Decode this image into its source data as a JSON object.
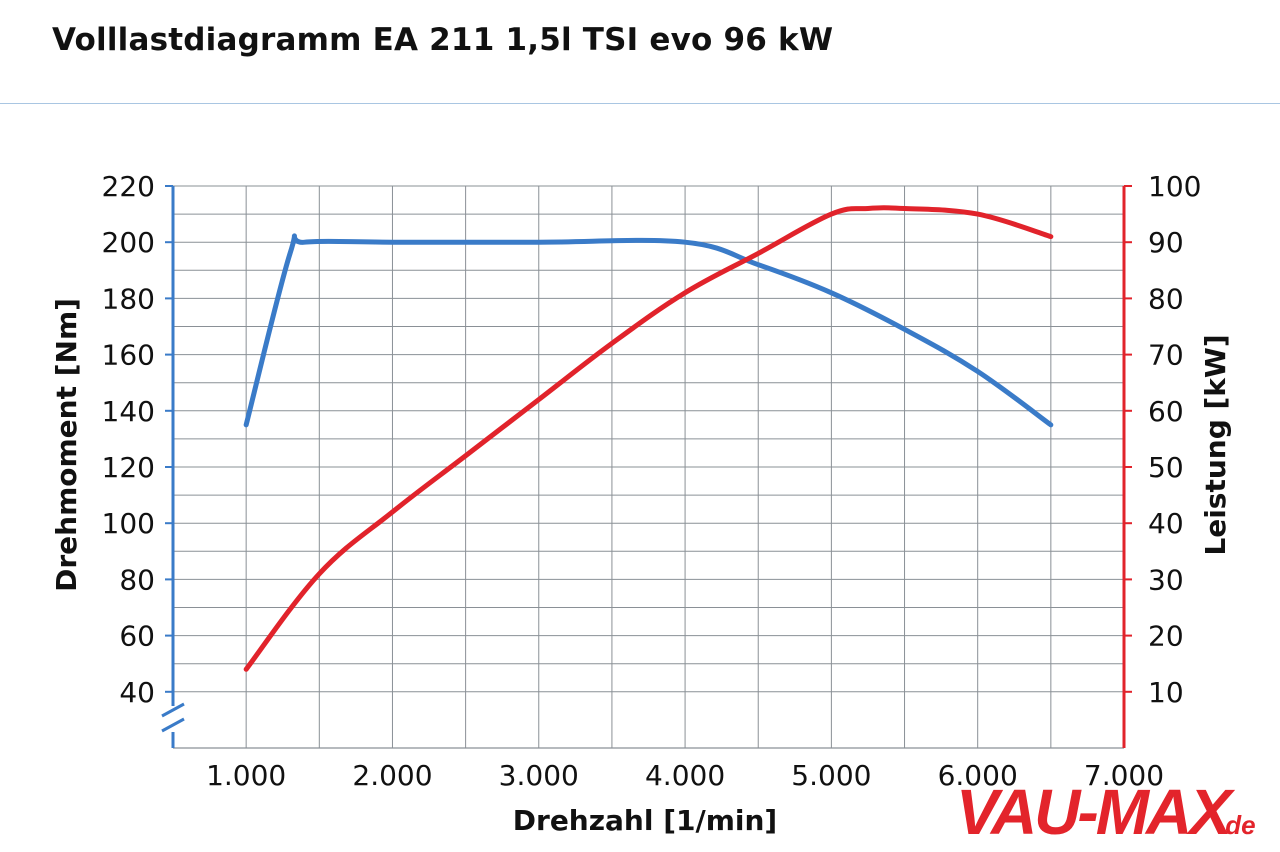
{
  "title": "Volllastdiagramm EA 211 1,5l TSI evo 96 kW",
  "watermark": {
    "main": "VAU-MAX",
    "suffix": ".de",
    "color": "#e3242b"
  },
  "colors": {
    "torque": "#3a7bc8",
    "power": "#e1232b",
    "grid": "#8a9096",
    "text": "#111111"
  },
  "chart_data": {
    "type": "line",
    "xlabel": "Drehzahl [1/min]",
    "ylabel": "Drehmoment [Nm]",
    "y2label": "Leistung [kW]",
    "xlim": [
      500,
      7000
    ],
    "ylim": [
      20,
      220
    ],
    "y2lim": [
      0,
      100
    ],
    "x_ticks": [
      1000,
      2000,
      3000,
      4000,
      5000,
      6000,
      7000
    ],
    "x_tick_labels": [
      "1.000",
      "2.000",
      "3.000",
      "4.000",
      "5.000",
      "6.000",
      "7.000"
    ],
    "y_ticks": [
      40,
      60,
      80,
      100,
      120,
      140,
      160,
      180,
      200,
      220
    ],
    "y_tick_labels": [
      "40",
      "60",
      "80",
      "100",
      "120",
      "140",
      "160",
      "180",
      "200",
      "220"
    ],
    "y2_ticks": [
      10,
      20,
      30,
      40,
      50,
      60,
      70,
      80,
      90,
      100
    ],
    "y2_tick_labels": [
      "10",
      "20",
      "30",
      "40",
      "50",
      "60",
      "70",
      "80",
      "90",
      "100"
    ],
    "grid": true,
    "series": [
      {
        "axis": "left",
        "color": "#3a7bc8",
        "x": [
          1000,
          1300,
          1400,
          2000,
          3000,
          4000,
          4500,
          5000,
          5500,
          6000,
          6500
        ],
        "y": [
          135,
          196,
          200,
          200,
          200,
          200,
          192,
          182,
          169,
          154,
          135
        ]
      },
      {
        "axis": "right",
        "color": "#e1232b",
        "x": [
          1000,
          1500,
          2000,
          2500,
          3000,
          3500,
          4000,
          4500,
          5000,
          5250,
          5500,
          6000,
          6500
        ],
        "y": [
          14,
          31,
          42,
          52,
          62,
          72,
          81,
          88,
          95,
          96,
          96,
          95,
          91
        ]
      }
    ]
  }
}
